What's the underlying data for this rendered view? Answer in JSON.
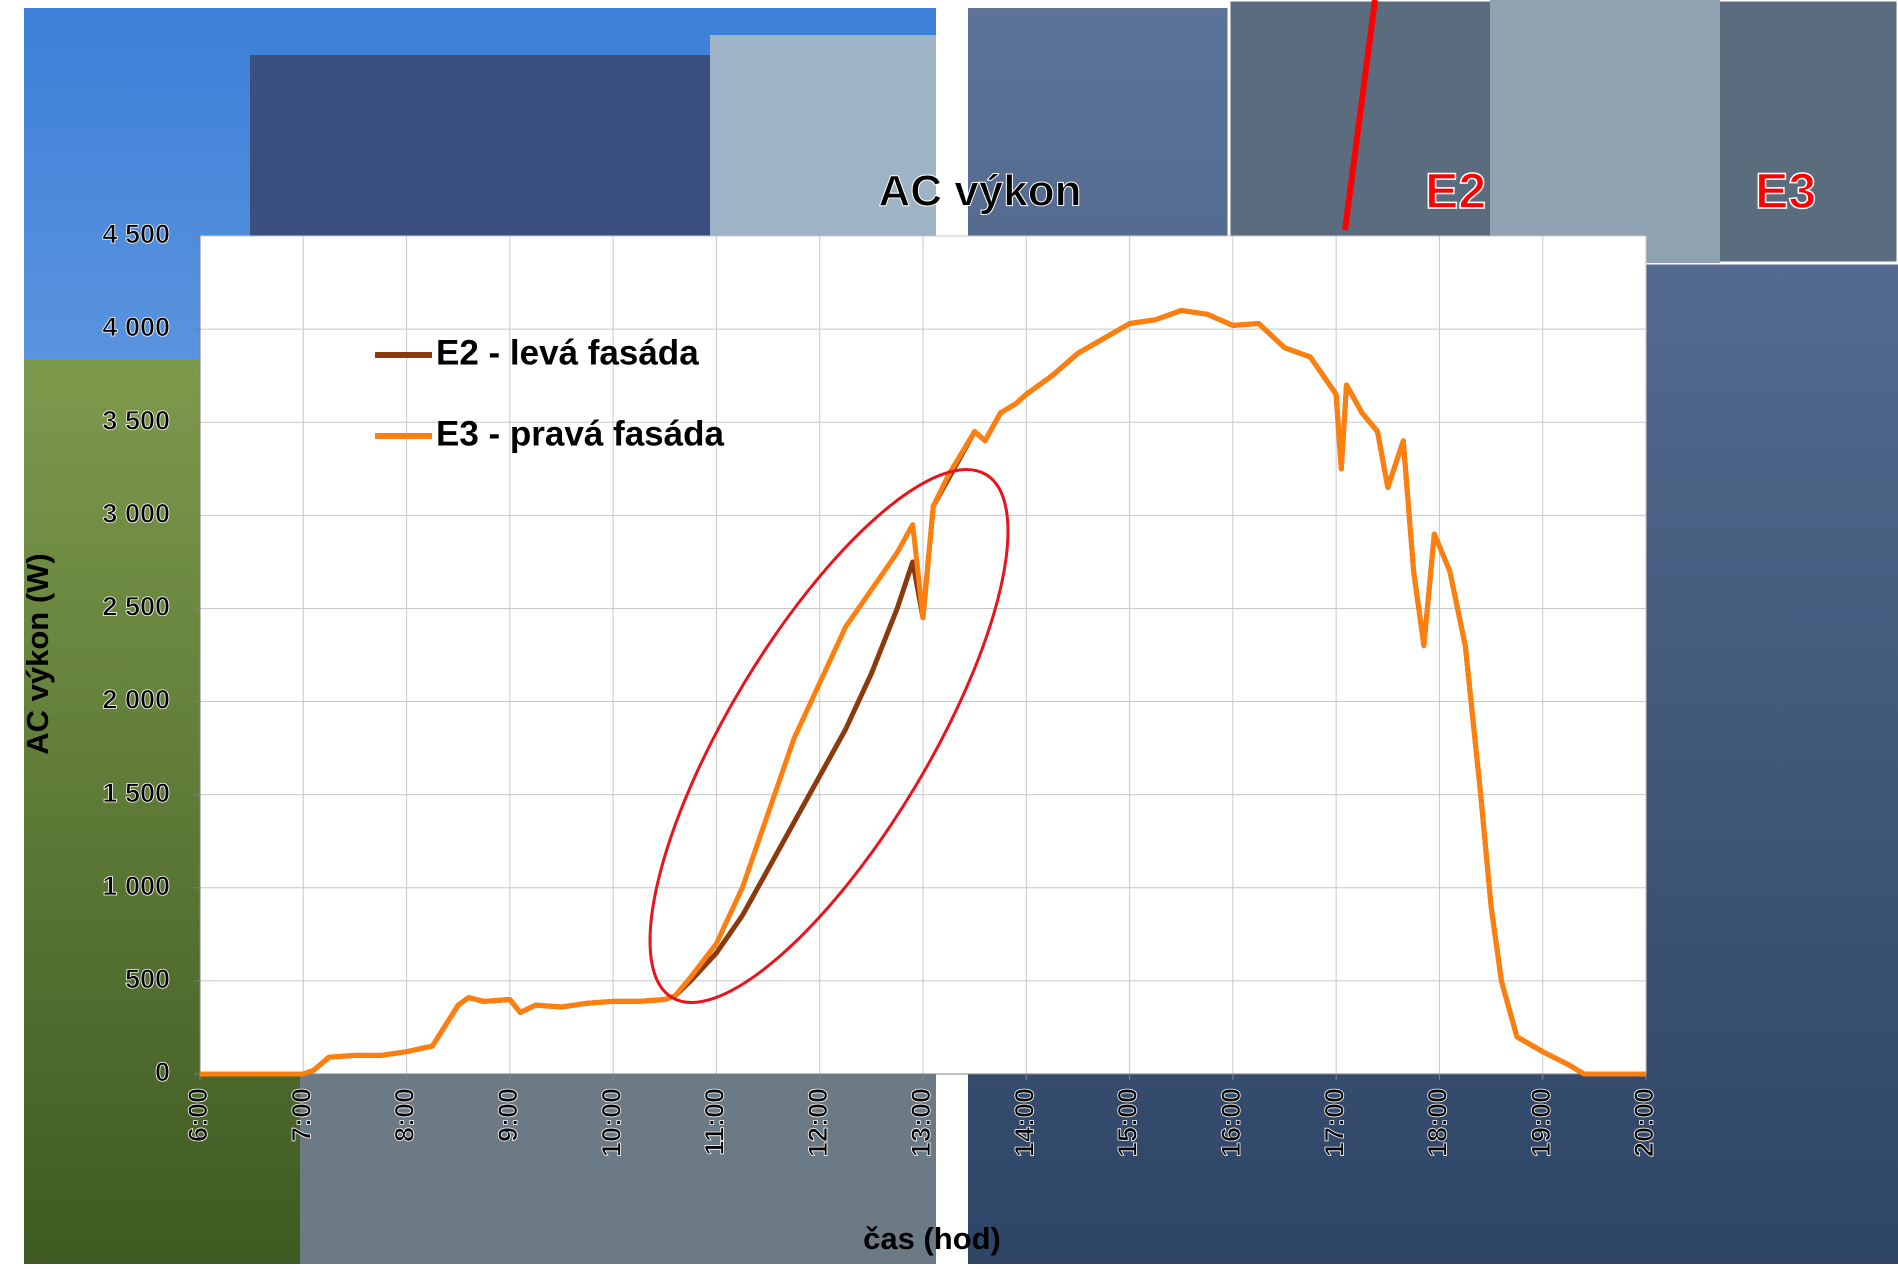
{
  "chart_data": {
    "type": "line",
    "title": "AC výkon",
    "ylabel": "AC výkon (W)",
    "xlabel": "čas (hod)",
    "annotations": [
      "E2",
      "E3"
    ],
    "x": [
      6,
      6.5,
      7,
      7.1,
      7.25,
      7.5,
      7.75,
      8,
      8.25,
      8.5,
      8.6,
      8.75,
      9,
      9.1,
      9.25,
      9.5,
      9.75,
      10,
      10.25,
      10.5,
      10.6,
      10.75,
      11,
      11.25,
      11.5,
      11.75,
      12,
      12.25,
      12.5,
      12.75,
      12.9,
      13,
      13.1,
      13.25,
      13.5,
      13.6,
      13.75,
      13.9,
      14,
      14.25,
      14.5,
      14.75,
      15,
      15.25,
      15.5,
      15.75,
      16,
      16.25,
      16.5,
      16.75,
      17,
      17.05,
      17.1,
      17.25,
      17.4,
      17.5,
      17.65,
      17.75,
      17.85,
      17.95,
      18.1,
      18.25,
      18.4,
      18.5,
      18.6,
      18.75,
      19,
      19.25,
      19.4,
      20
    ],
    "series": [
      {
        "name": "E2 - levá fasáda",
        "color": "#8b3a0e",
        "values": [
          0,
          0,
          0,
          20,
          90,
          100,
          100,
          120,
          150,
          370,
          410,
          390,
          400,
          330,
          370,
          360,
          380,
          390,
          390,
          400,
          420,
          500,
          650,
          850,
          1100,
          1350,
          1600,
          1850,
          2150,
          2500,
          2750,
          2450,
          3050,
          3200,
          3450,
          3400,
          3550,
          3600,
          3650,
          3750,
          3870,
          3950,
          4030,
          4050,
          4100,
          4080,
          4020,
          4030,
          3900,
          3850,
          3650,
          3250,
          3700,
          3550,
          3450,
          3150,
          3400,
          2700,
          2300,
          2900,
          2700,
          2300,
          1500,
          900,
          500,
          200,
          120,
          50,
          0,
          0
        ]
      },
      {
        "name": "E3 - pravá fasáda",
        "color": "#ff7f0e",
        "values": [
          0,
          0,
          0,
          20,
          90,
          100,
          100,
          120,
          150,
          370,
          410,
          390,
          400,
          330,
          370,
          360,
          380,
          390,
          390,
          400,
          420,
          520,
          700,
          1000,
          1400,
          1800,
          2100,
          2400,
          2600,
          2800,
          2950,
          2450,
          3050,
          3220,
          3450,
          3400,
          3550,
          3600,
          3650,
          3750,
          3870,
          3950,
          4030,
          4050,
          4100,
          4080,
          4020,
          4030,
          3900,
          3850,
          3650,
          3250,
          3700,
          3550,
          3450,
          3150,
          3400,
          2700,
          2300,
          2900,
          2700,
          2300,
          1500,
          900,
          500,
          200,
          120,
          50,
          0,
          0
        ]
      }
    ],
    "xlim": [
      6,
      20
    ],
    "xticks": [
      {
        "value": 6,
        "label": "6:00"
      },
      {
        "value": 7,
        "label": "7:00"
      },
      {
        "value": 8,
        "label": "8:00"
      },
      {
        "value": 9,
        "label": "9:00"
      },
      {
        "value": 10,
        "label": "10:00"
      },
      {
        "value": 11,
        "label": "11:00"
      },
      {
        "value": 12,
        "label": "12:00"
      },
      {
        "value": 13,
        "label": "13:00"
      },
      {
        "value": 14,
        "label": "14:00"
      },
      {
        "value": 15,
        "label": "15:00"
      },
      {
        "value": 16,
        "label": "16:00"
      },
      {
        "value": 17,
        "label": "17:00"
      },
      {
        "value": 18,
        "label": "18:00"
      },
      {
        "value": 19,
        "label": "19:00"
      },
      {
        "value": 20,
        "label": "20:00"
      }
    ],
    "ylim": [
      0,
      4500
    ],
    "yticks": [
      0,
      {
        "value": 500,
        "label": "500"
      },
      {
        "value": 1000,
        "label": "1 000"
      },
      {
        "value": 1500,
        "label": "1 500"
      },
      {
        "value": 2000,
        "label": "2 000"
      },
      {
        "value": 2500,
        "label": "2 500"
      },
      {
        "value": 3000,
        "label": "3 000"
      },
      {
        "value": 3500,
        "label": "3 500"
      },
      {
        "value": 4000,
        "label": "4 000"
      },
      {
        "value": 4500,
        "label": "4 500"
      }
    ],
    "grid": true
  }
}
